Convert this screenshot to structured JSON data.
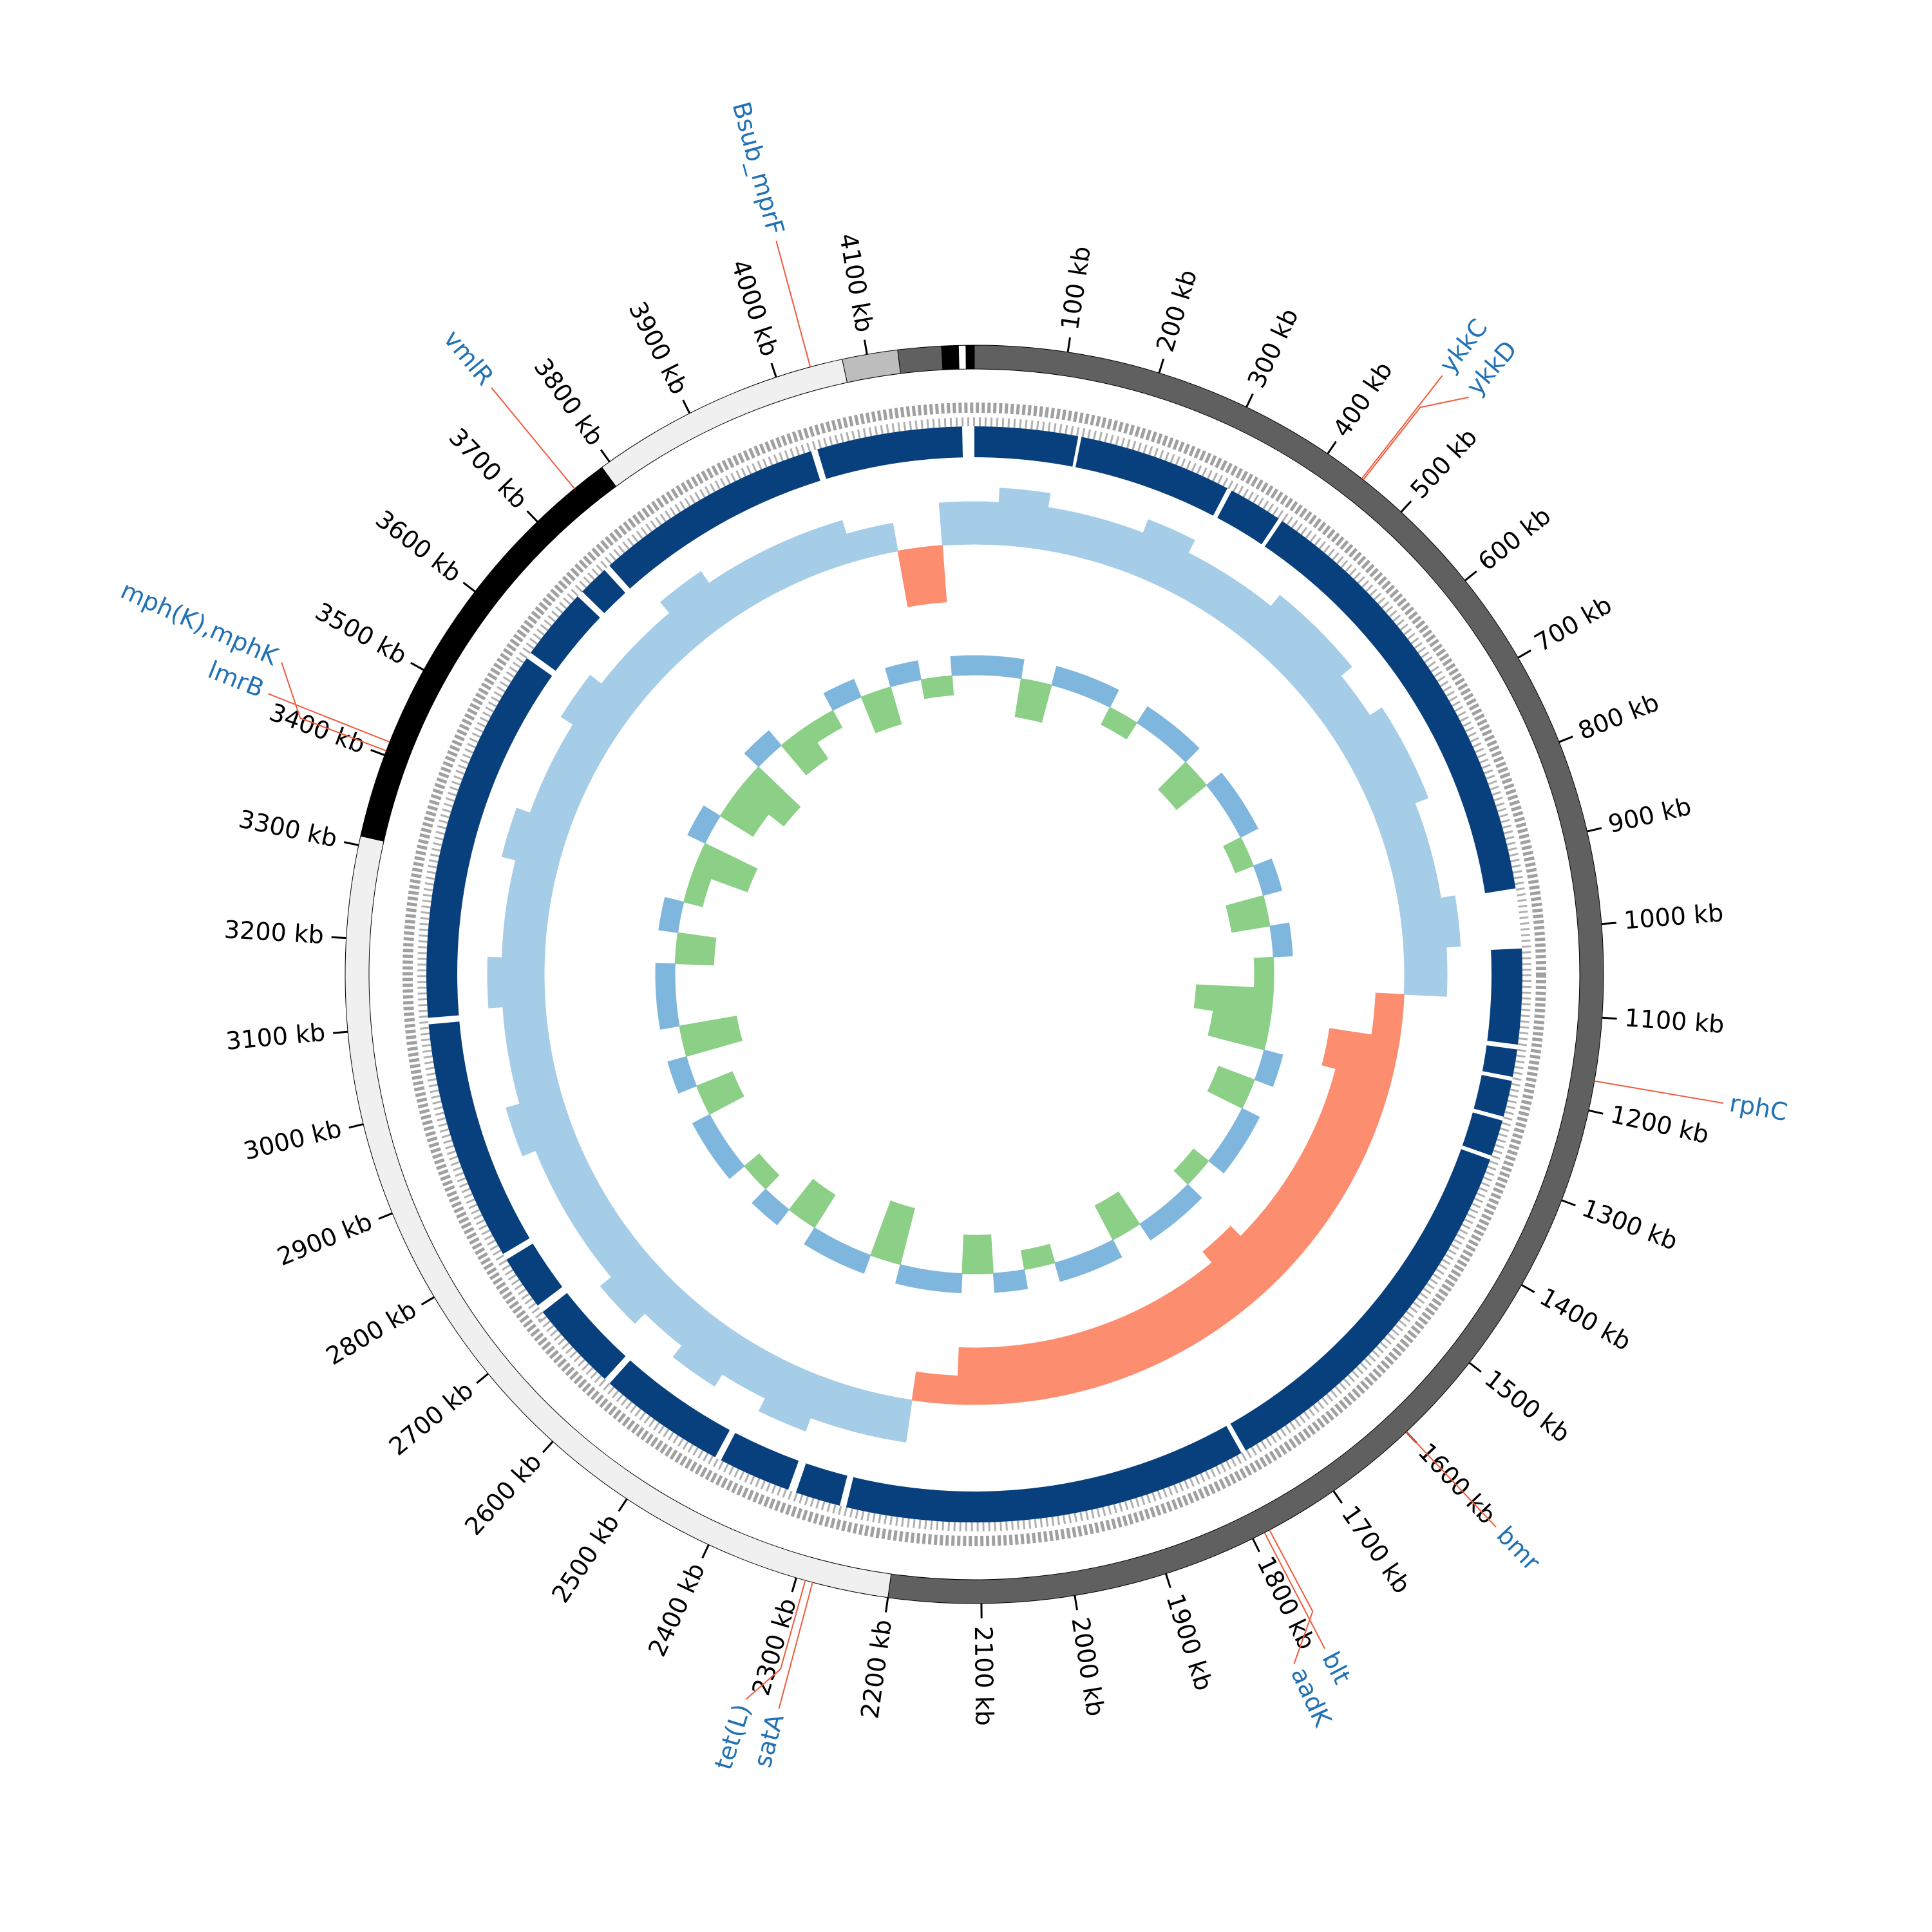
{
  "chart_data": {
    "type": "circos",
    "genome_length": 4215,
    "ticks": [
      {
        "value": 100,
        "label": "100 kb"
      },
      {
        "value": 200,
        "label": "200 kb"
      },
      {
        "value": 300,
        "label": "300 kb"
      },
      {
        "value": 400,
        "label": "400 kb"
      },
      {
        "value": 500,
        "label": "500 kb"
      },
      {
        "value": 600,
        "label": "600 kb"
      },
      {
        "value": 700,
        "label": "700 kb"
      },
      {
        "value": 800,
        "label": "800 kb"
      },
      {
        "value": 900,
        "label": "900 kb"
      },
      {
        "value": 1000,
        "label": "1000 kb"
      },
      {
        "value": 1100,
        "label": "1100 kb"
      },
      {
        "value": 1200,
        "label": "1200 kb"
      },
      {
        "value": 1300,
        "label": "1300 kb"
      },
      {
        "value": 1400,
        "label": "1400 kb"
      },
      {
        "value": 1500,
        "label": "1500 kb"
      },
      {
        "value": 1600,
        "label": "1600 kb"
      },
      {
        "value": 1700,
        "label": "1700 kb"
      },
      {
        "value": 1800,
        "label": "1800 kb"
      },
      {
        "value": 1900,
        "label": "1900 kb"
      },
      {
        "value": 2000,
        "label": "2000 kb"
      },
      {
        "value": 2100,
        "label": "2100 kb"
      },
      {
        "value": 2200,
        "label": "2200 kb"
      },
      {
        "value": 2300,
        "label": "2300 kb"
      },
      {
        "value": 2400,
        "label": "2400 kb"
      },
      {
        "value": 2500,
        "label": "2500 kb"
      },
      {
        "value": 2600,
        "label": "2600 kb"
      },
      {
        "value": 2700,
        "label": "2700 kb"
      },
      {
        "value": 2800,
        "label": "2800 kb"
      },
      {
        "value": 2900,
        "label": "2900 kb"
      },
      {
        "value": 3000,
        "label": "3000 kb"
      },
      {
        "value": 3100,
        "label": "3100 kb"
      },
      {
        "value": 3200,
        "label": "3200 kb"
      },
      {
        "value": 3300,
        "label": "3300 kb"
      },
      {
        "value": 3400,
        "label": "3400 kb"
      },
      {
        "value": 3500,
        "label": "3500 kb"
      },
      {
        "value": 3600,
        "label": "3600 kb"
      },
      {
        "value": 3700,
        "label": "3700 kb"
      },
      {
        "value": 3800,
        "label": "3800 kb"
      },
      {
        "value": 3900,
        "label": "3900 kb"
      },
      {
        "value": 4000,
        "label": "4000 kb"
      },
      {
        "value": 4100,
        "label": "4100 kb"
      }
    ],
    "contigs": [
      {
        "start": 0,
        "end": 2200,
        "color": "#606060"
      },
      {
        "start": 2200,
        "end": 3310,
        "color": "#f0f0f0"
      },
      {
        "start": 3310,
        "end": 3790,
        "color": "#000000"
      },
      {
        "start": 3790,
        "end": 4073,
        "color": "#f0f0f0"
      },
      {
        "start": 4073,
        "end": 4133,
        "color": "#bdbdbd"
      },
      {
        "start": 4133,
        "end": 4180,
        "color": "#606060"
      },
      {
        "start": 4180,
        "end": 4198,
        "color": "#000000"
      },
      {
        "start": 4198,
        "end": 4206,
        "color": "#ffffff"
      },
      {
        "start": 4206,
        "end": 4215,
        "color": "#000000"
      }
    ],
    "cds": {
      "color": "#08407e",
      "blocks": [
        [
          0,
          128
        ],
        [
          132,
          322
        ],
        [
          328,
          395
        ],
        [
          400,
          948
        ],
        [
          1022,
          1140
        ],
        [
          1146,
          1180
        ],
        [
          1185,
          1230
        ],
        [
          1235,
          1280
        ],
        [
          1285,
          1760
        ],
        [
          1766,
          2266
        ],
        [
          2274,
          2330
        ],
        [
          2340,
          2430
        ],
        [
          2438,
          2596
        ],
        [
          2604,
          2716
        ],
        [
          2726,
          2794
        ],
        [
          2802,
          3100
        ],
        [
          3108,
          3574
        ],
        [
          3582,
          3672
        ],
        [
          3680,
          3718
        ],
        [
          3726,
          4012
        ],
        [
          4020,
          4200
        ]
      ]
    },
    "gc_content": {
      "pos_color": "#a6cde8",
      "neg_color": "#fc8d6e",
      "x": [
        0,
        70,
        140,
        210,
        280,
        350,
        420,
        490,
        560,
        630,
        700,
        770,
        840,
        910,
        980,
        1050,
        1120,
        1190,
        1260,
        1330,
        1400,
        1470,
        1540,
        1610,
        1680,
        1750,
        1820,
        1890,
        1960,
        2030,
        2100,
        2170,
        2240,
        2310,
        2380,
        2450,
        2520,
        2590,
        2660,
        2730,
        2800,
        2870,
        2940,
        3010,
        3080,
        3150,
        3220,
        3290,
        3360,
        3430,
        3500,
        3570,
        3640,
        3710,
        3780,
        3850,
        3920,
        3990,
        4060,
        4130,
        4200
      ],
      "values": [
        3,
        4,
        3,
        3,
        4,
        3,
        3,
        4,
        4,
        3,
        4,
        4,
        3,
        3,
        4,
        3,
        -2,
        -5,
        -4,
        -4,
        -4,
        -4,
        -4,
        -5,
        -4,
        -4,
        -4,
        -4,
        -4,
        -4,
        -4,
        -2,
        3,
        3,
        4,
        3,
        4,
        3,
        4,
        3,
        3,
        3,
        4,
        3,
        3,
        4,
        3,
        3,
        4,
        3,
        3,
        4,
        3,
        3,
        4,
        3,
        3,
        3,
        2,
        -4,
        3
      ]
    },
    "gc_skew": {
      "pos_color": "#7fb6dd",
      "neg_color": "#8ccf86",
      "x": [
        0,
        70,
        140,
        210,
        280,
        350,
        420,
        490,
        560,
        630,
        700,
        770,
        840,
        910,
        980,
        1050,
        1120,
        1190,
        1260,
        1330,
        1400,
        1470,
        1540,
        1610,
        1680,
        1750,
        1820,
        1890,
        1960,
        2030,
        2100,
        2170,
        2240,
        2310,
        2380,
        2450,
        2520,
        2590,
        2660,
        2730,
        2800,
        2870,
        2940,
        3010,
        3080,
        3150,
        3220,
        3290,
        3360,
        3430,
        3500,
        3570,
        3640,
        3710,
        3780,
        3850,
        3920,
        3990,
        4060,
        4130,
        4200
      ],
      "values": [
        1,
        1,
        -2,
        1,
        1,
        -1,
        1,
        1,
        -2,
        1,
        1,
        -1,
        1,
        -2,
        1,
        -1,
        -4,
        -3,
        1,
        -2,
        1,
        1,
        -1,
        1,
        1,
        -2,
        1,
        1,
        -1,
        1,
        -2,
        1,
        1,
        -3,
        1,
        1,
        -2,
        1,
        -1,
        1,
        1,
        -2,
        1,
        -3,
        1,
        1,
        -2,
        1,
        -1,
        -3,
        1,
        -2,
        -3,
        1,
        -2,
        -1,
        1,
        -2,
        1,
        -1,
        1
      ]
    },
    "label_color": "#2171b5",
    "leader_color": "#f05a3c",
    "genes": [
      {
        "name": "ykkC",
        "position": 445
      },
      {
        "name": "ykkD",
        "position": 447
      },
      {
        "name": "rphC",
        "position": 1168
      },
      {
        "name": "bmr",
        "position": 1600
      },
      {
        "name": "blt",
        "position": 1786
      },
      {
        "name": "aadK",
        "position": 1780
      },
      {
        "name": "satA",
        "position": 2282
      },
      {
        "name": "tet(L)",
        "position": 2290
      },
      {
        "name": "lmrB",
        "position": 3415
      },
      {
        "name": "mph(K),mphK",
        "position": 3405
      },
      {
        "name": "vmlR",
        "position": 3753
      },
      {
        "name": "Bsub_mprF",
        "position": 4038
      }
    ]
  }
}
